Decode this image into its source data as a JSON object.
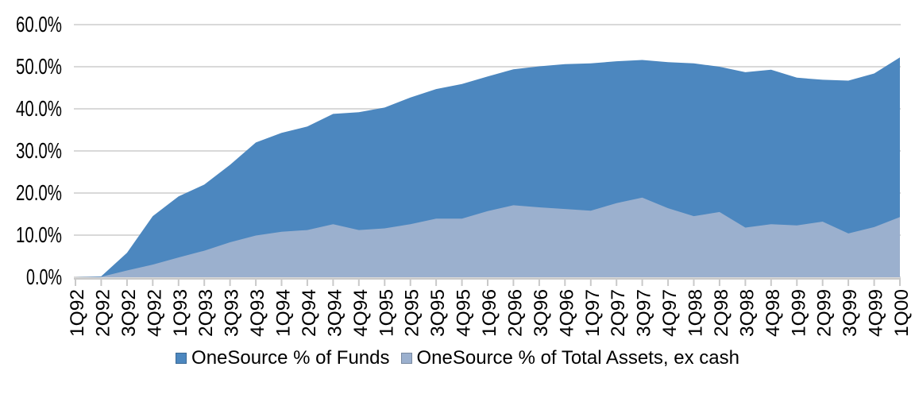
{
  "chart_data": {
    "type": "area",
    "style": "overlapping-areas",
    "categories": [
      "1Q92",
      "2Q92",
      "3Q92",
      "4Q92",
      "1Q93",
      "2Q93",
      "3Q93",
      "4Q93",
      "1Q94",
      "2Q94",
      "3Q94",
      "4Q94",
      "1Q95",
      "2Q95",
      "3Q95",
      "4Q95",
      "1Q96",
      "2Q96",
      "3Q96",
      "4Q96",
      "1Q97",
      "2Q97",
      "3Q97",
      "4Q97",
      "1Q98",
      "2Q98",
      "3Q98",
      "4Q98",
      "1Q99",
      "2Q99",
      "3Q99",
      "4Q99",
      "1Q00"
    ],
    "series": [
      {
        "name": "OneSource % of Funds",
        "color": "#4C87BF",
        "values": [
          0.0,
          0.2,
          5.8,
          14.5,
          19.2,
          22.0,
          26.7,
          32.0,
          34.3,
          35.8,
          38.8,
          39.2,
          40.3,
          42.7,
          44.7,
          45.9,
          47.7,
          49.4,
          50.1,
          50.6,
          50.8,
          51.3,
          51.6,
          51.1,
          50.8,
          50.0,
          48.7,
          49.3,
          47.4,
          46.9,
          46.7,
          48.4,
          52.2
        ]
      },
      {
        "name": "OneSource % of Total Assets, ex cash",
        "color": "#9BB0CE",
        "values": [
          0.0,
          0.1,
          1.6,
          3.0,
          4.7,
          6.3,
          8.3,
          9.9,
          10.8,
          11.2,
          12.6,
          11.2,
          11.6,
          12.6,
          13.9,
          13.9,
          15.7,
          17.1,
          16.6,
          16.2,
          15.8,
          17.6,
          18.9,
          16.4,
          14.5,
          15.5,
          11.8,
          12.6,
          12.3,
          13.2,
          10.4,
          11.9,
          14.3
        ]
      }
    ],
    "title": "",
    "xlabel": "",
    "ylabel": "",
    "ylim": [
      0,
      60
    ],
    "y_ticks": [
      "0.0%",
      "10.0%",
      "20.0%",
      "30.0%",
      "40.0%",
      "50.0%",
      "60.0%"
    ],
    "grid": "horizontal",
    "gridline_color": "#D9D9D9",
    "axis_color": "#C9C9C9",
    "tick_color": "#C9C9C9",
    "text_color": "#000000",
    "legend_position": "bottom"
  }
}
